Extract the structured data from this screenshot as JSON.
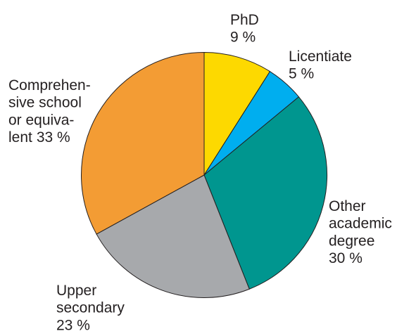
{
  "chart_data": {
    "type": "pie",
    "categories": [
      [
        "PhD"
      ],
      [
        "Licentiate"
      ],
      [
        "Other",
        "academic",
        "degree"
      ],
      [
        "Upper",
        "secondary"
      ],
      [
        "Comprehen-",
        "sive school",
        "or equiva-",
        "lent"
      ]
    ],
    "values": [
      9,
      5,
      30,
      23,
      33
    ],
    "value_labels": [
      "9 %",
      "5 %",
      "30 %",
      "23 %",
      "33 %"
    ],
    "colors": [
      "#fdd900",
      "#00aeef",
      "#00968f",
      "#a7a9ac",
      "#f39c34"
    ]
  }
}
